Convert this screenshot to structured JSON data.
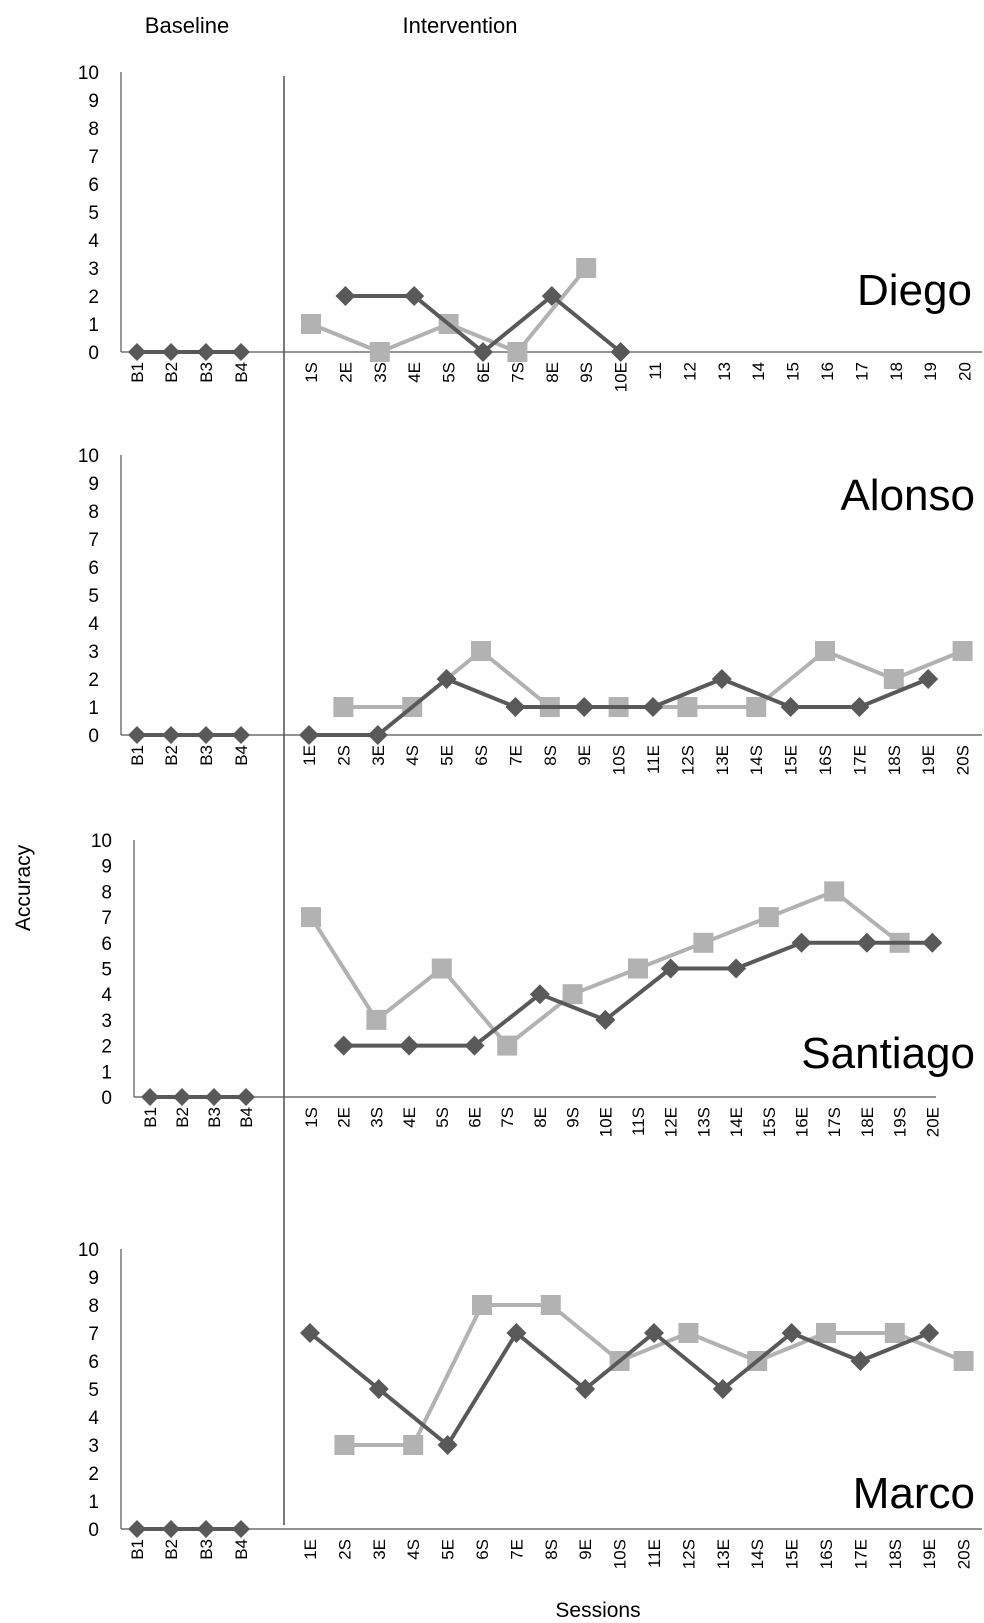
{
  "chart_data": {
    "type": "line",
    "phase_labels": [
      "Baseline",
      "Intervention"
    ],
    "ylabel": "Accuracy",
    "xlabel": "Sessions",
    "ylim": [
      0,
      10
    ],
    "y_ticks": [
      "0",
      "1",
      "2",
      "3",
      "4",
      "5",
      "6",
      "7",
      "8",
      "9",
      "10"
    ],
    "colors": {
      "dark": "#595959",
      "light": "#b2b2b2"
    },
    "markers": {
      "dark": "diamond",
      "light": "square"
    },
    "panels": [
      {
        "participant": "Diego",
        "baseline_categories": [
          "B1",
          "B2",
          "B3",
          "B4"
        ],
        "baseline_values": [
          0,
          0,
          0,
          0
        ],
        "categories": [
          "1S",
          "2E",
          "3S",
          "4E",
          "5S",
          "6E",
          "7S",
          "8E",
          "9S",
          "10E",
          "11",
          "12",
          "13",
          "14",
          "15",
          "16",
          "17",
          "18",
          "19",
          "20"
        ],
        "series": [
          {
            "style": "dark",
            "values": [
              null,
              2,
              null,
              2,
              null,
              0,
              null,
              2,
              null,
              0,
              null,
              null,
              null,
              null,
              null,
              null,
              null,
              null,
              null,
              null
            ]
          },
          {
            "style": "light",
            "values": [
              1,
              null,
              0,
              null,
              1,
              null,
              0,
              null,
              3,
              null,
              null,
              null,
              null,
              null,
              null,
              null,
              null,
              null,
              null,
              null
            ]
          }
        ]
      },
      {
        "participant": "Alonso",
        "baseline_categories": [
          "B1",
          "B2",
          "B3",
          "B4"
        ],
        "baseline_values": [
          0,
          0,
          0,
          0
        ],
        "categories": [
          "1E",
          "2S",
          "3E",
          "4S",
          "5E",
          "6S",
          "7E",
          "8S",
          "9E",
          "10S",
          "11E",
          "12S",
          "13E",
          "14S",
          "15E",
          "16S",
          "17E",
          "18S",
          "19E",
          "20S"
        ],
        "series": [
          {
            "style": "dark",
            "values": [
              0,
              null,
              0,
              null,
              2,
              null,
              1,
              null,
              1,
              null,
              1,
              null,
              2,
              null,
              1,
              null,
              1,
              null,
              2,
              null
            ]
          },
          {
            "style": "light",
            "values": [
              null,
              1,
              null,
              1,
              null,
              3,
              null,
              1,
              null,
              1,
              null,
              1,
              null,
              1,
              null,
              3,
              null,
              2,
              null,
              3
            ]
          }
        ]
      },
      {
        "participant": "Santiago",
        "baseline_categories": [
          "B1",
          "B2",
          "B3",
          "B4"
        ],
        "baseline_values": [
          0,
          0,
          0,
          0
        ],
        "categories": [
          "1S",
          "2E",
          "3S",
          "4E",
          "5S",
          "6E",
          "7S",
          "8E",
          "9S",
          "10E",
          "11S",
          "12E",
          "13S",
          "14E",
          "15S",
          "16E",
          "17S",
          "18E",
          "19S",
          "20E"
        ],
        "series": [
          {
            "style": "dark",
            "values": [
              null,
              2,
              null,
              2,
              null,
              2,
              null,
              4,
              null,
              3,
              null,
              5,
              null,
              5,
              null,
              6,
              null,
              6,
              null,
              6
            ]
          },
          {
            "style": "light",
            "values": [
              7,
              null,
              3,
              null,
              5,
              null,
              2,
              null,
              4,
              null,
              5,
              null,
              6,
              null,
              7,
              null,
              8,
              null,
              6,
              null
            ]
          }
        ]
      },
      {
        "participant": "Marco",
        "baseline_categories": [
          "B1",
          "B2",
          "B3",
          "B4"
        ],
        "baseline_values": [
          0,
          0,
          0,
          0
        ],
        "categories": [
          "1E",
          "2S",
          "3E",
          "4S",
          "5E",
          "6S",
          "7E",
          "8S",
          "9E",
          "10S",
          "11E",
          "12S",
          "13E",
          "14S",
          "15E",
          "16S",
          "17E",
          "18S",
          "19E",
          "20S"
        ],
        "series": [
          {
            "style": "dark",
            "values": [
              7,
              null,
              5,
              null,
              3,
              null,
              7,
              null,
              5,
              null,
              7,
              null,
              5,
              null,
              7,
              null,
              6,
              null,
              7,
              null
            ]
          },
          {
            "style": "light",
            "values": [
              null,
              3,
              null,
              3,
              null,
              8,
              null,
              8,
              null,
              6,
              null,
              7,
              null,
              6,
              null,
              7,
              null,
              7,
              null,
              6
            ]
          }
        ]
      }
    ]
  }
}
